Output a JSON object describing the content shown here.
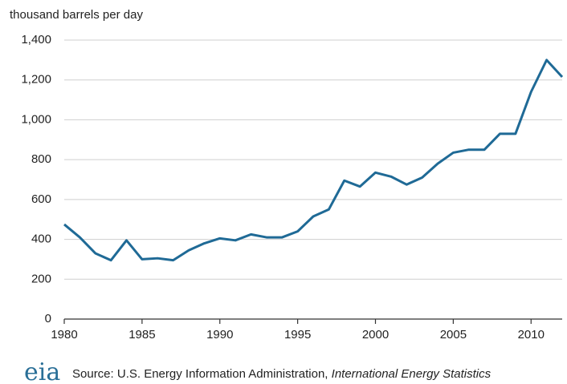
{
  "chart_data": {
    "type": "line",
    "y_axis_label": "thousand barrels per day",
    "x": [
      1980,
      1981,
      1982,
      1983,
      1984,
      1985,
      1986,
      1987,
      1988,
      1989,
      1990,
      1991,
      1992,
      1993,
      1994,
      1995,
      1996,
      1997,
      1998,
      1999,
      2000,
      2001,
      2002,
      2003,
      2004,
      2005,
      2006,
      2007,
      2008,
      2009,
      2010,
      2011,
      2012
    ],
    "series": [
      {
        "color": "#1f6a96",
        "values": [
          475,
          410,
          330,
          295,
          395,
          300,
          305,
          295,
          345,
          380,
          405,
          395,
          425,
          410,
          410,
          440,
          515,
          550,
          695,
          665,
          735,
          715,
          675,
          710,
          780,
          835,
          850,
          850,
          930,
          930,
          1140,
          1300,
          1215
        ]
      }
    ],
    "xlim": [
      1980,
      2012
    ],
    "xticks": [
      1980,
      1985,
      1990,
      1995,
      2000,
      2005,
      2010
    ],
    "ylim": [
      0,
      1400
    ],
    "yticks": [
      0,
      200,
      400,
      600,
      800,
      {
        "value": 1000,
        "label": "1,000"
      },
      {
        "value": 1200,
        "label": "1,200"
      },
      {
        "value": 1400,
        "label": "1,400"
      }
    ],
    "grid": true,
    "logo": "eia",
    "source": "Source: U.S. Energy Information  Administration,",
    "source_publication": "International Energy Statistics"
  }
}
